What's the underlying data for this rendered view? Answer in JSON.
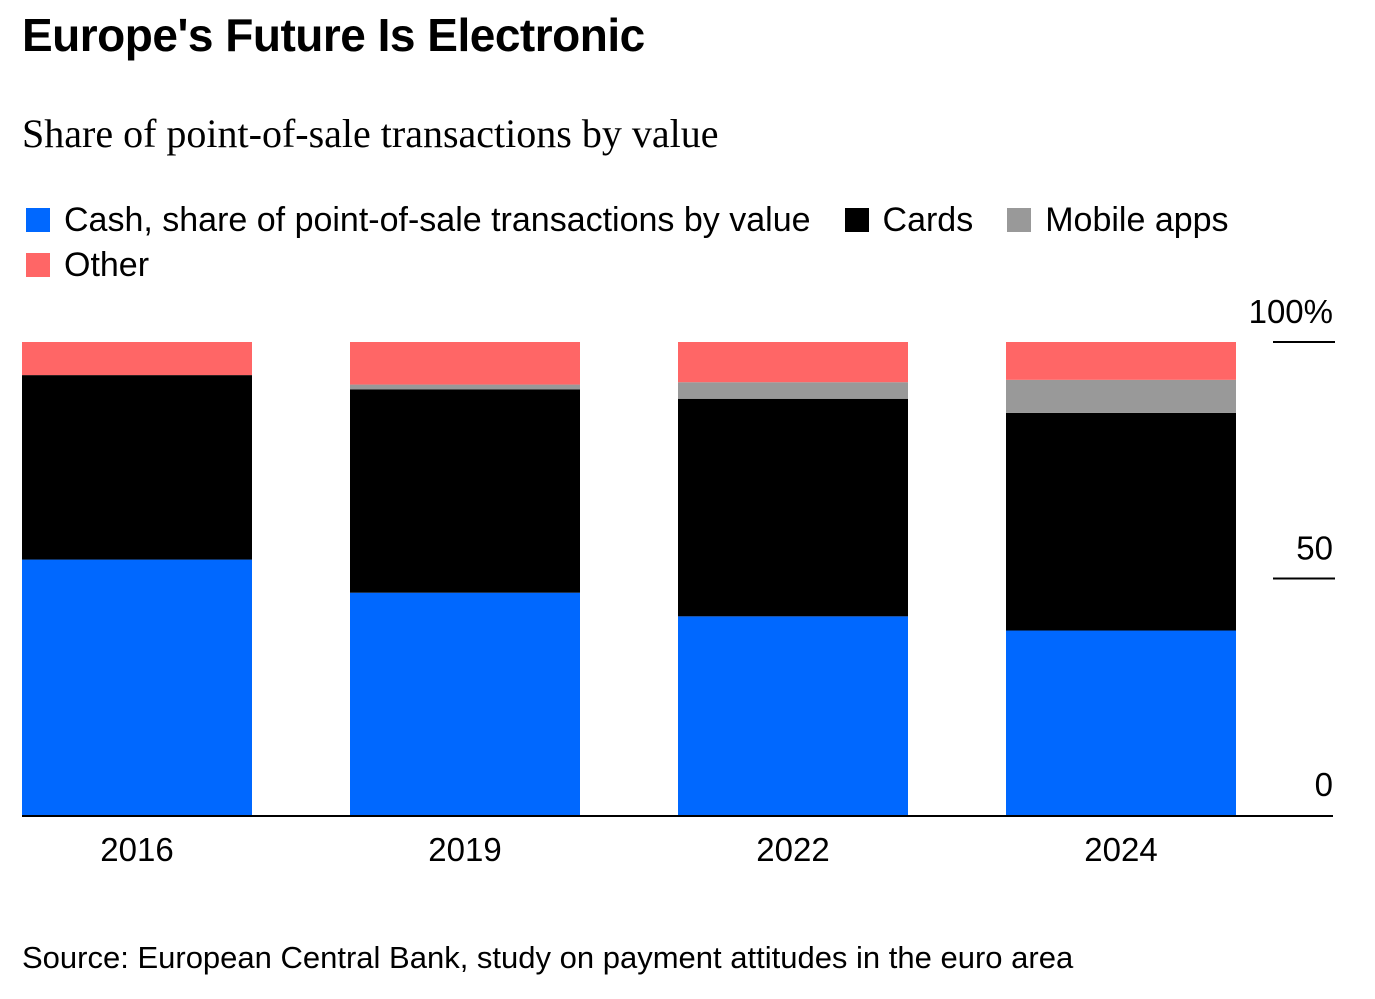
{
  "chart_data": {
    "type": "bar",
    "stacked": true,
    "title": "Europe's Future Is Electronic",
    "subtitle": "Share of point-of-sale transactions by value",
    "categories": [
      "2016",
      "2019",
      "2022",
      "2024"
    ],
    "series": [
      {
        "name": "Cash, share of point-of-sale transactions by value",
        "color": "#0068ff",
        "values": [
          54,
          47,
          42,
          39
        ]
      },
      {
        "name": "Cards",
        "color": "#000000",
        "values": [
          39,
          43,
          46,
          46
        ]
      },
      {
        "name": "Mobile apps",
        "color": "#999999",
        "values": [
          0,
          1,
          3.5,
          7
        ]
      },
      {
        "name": "Other",
        "color": "#ff6666",
        "values": [
          7,
          9,
          8.5,
          8
        ]
      }
    ],
    "ylim": [
      0,
      100
    ],
    "yticks": [
      {
        "value": 0,
        "label": "0"
      },
      {
        "value": 50,
        "label": "50"
      },
      {
        "value": 100,
        "label": "100%"
      }
    ],
    "y_axis_side": "right",
    "legend_position": "top",
    "source": "Source: European Central Bank, study on payment attitudes in the euro area"
  }
}
